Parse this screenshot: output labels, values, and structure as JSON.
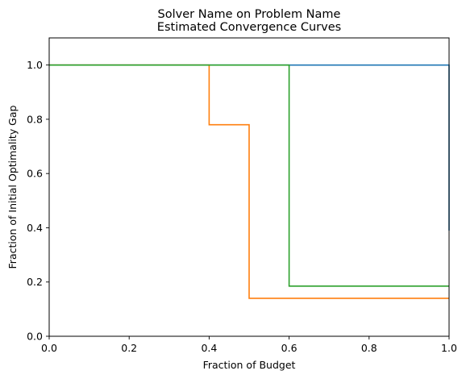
{
  "chart_data": {
    "type": "line",
    "title": [
      "Solver Name on Problem Name",
      "Estimated Convergence Curves"
    ],
    "xlabel": "Fraction of Budget",
    "ylabel": "Fraction of Initial Optimality Gap",
    "xlim": [
      0.0,
      1.0
    ],
    "ylim": [
      0.0,
      1.1
    ],
    "xticks": [
      0.0,
      0.2,
      0.4,
      0.6,
      0.8,
      1.0
    ],
    "xtick_labels": [
      "0.0",
      "0.2",
      "0.4",
      "0.6",
      "0.8",
      "1.0"
    ],
    "yticks": [
      0.0,
      0.2,
      0.4,
      0.6,
      0.8,
      1.0
    ],
    "ytick_labels": [
      "0.0",
      "0.2",
      "0.4",
      "0.6",
      "0.8",
      "1.0"
    ],
    "grid": false,
    "legend": null,
    "step": "post",
    "series": [
      {
        "color": "#1f77b4",
        "x": [
          0.0,
          1.0,
          1.0
        ],
        "y": [
          1.0,
          1.0,
          0.39
        ]
      },
      {
        "color": "#ff7f0e",
        "x": [
          0.0,
          0.4,
          0.4,
          0.5,
          0.5,
          1.0
        ],
        "y": [
          1.0,
          1.0,
          0.78,
          0.78,
          0.14,
          0.14
        ]
      },
      {
        "color": "#2ca02c",
        "x": [
          0.0,
          0.6,
          0.6,
          1.0
        ],
        "y": [
          1.0,
          1.0,
          0.185,
          0.185
        ]
      }
    ]
  }
}
